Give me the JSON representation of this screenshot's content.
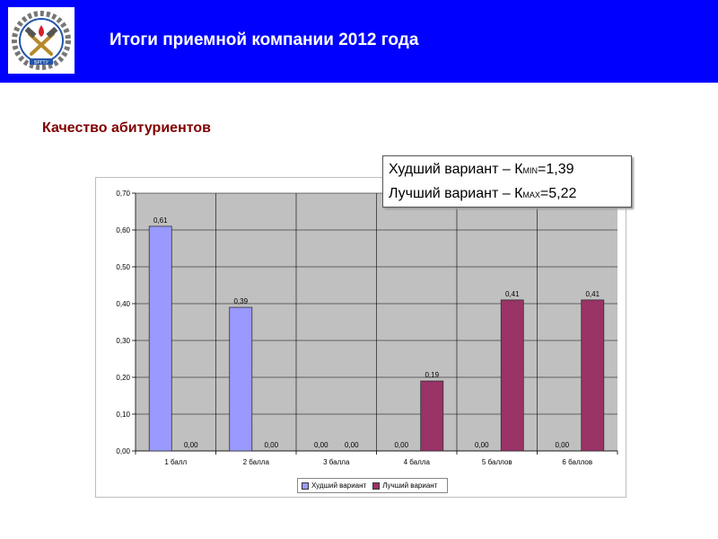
{
  "header": {
    "title": "Итоги приемной компании 2012 года",
    "logo_icon": "university-emblem-icon",
    "logo_text": "БРГТУ"
  },
  "subtitle": "Качество абитуриентов",
  "callout": {
    "worst": {
      "prefix": "Худший вариант – К",
      "sub": "MIN",
      "value": "=1,39"
    },
    "best": {
      "prefix": "Лучший вариант – К",
      "sub": "MAX",
      "value": "=5,22"
    }
  },
  "chart_data": {
    "type": "bar",
    "categories": [
      "1 балл",
      "2 балла",
      "3 балла",
      "4 балла",
      "5 баллов",
      "6 баллов"
    ],
    "series": [
      {
        "name": "Худший вариант",
        "values": [
          0.61,
          0.39,
          0.0,
          0.0,
          0.0,
          0.0
        ],
        "labels": [
          "0,61",
          "0,39",
          "0,00",
          "0,00",
          "0,00",
          "0,00"
        ],
        "color": "#9999ff"
      },
      {
        "name": "Лучший вариант",
        "values": [
          0.0,
          0.0,
          0.0,
          0.19,
          0.41,
          0.41
        ],
        "labels": [
          "0,00",
          "0,00",
          "0,00",
          "0,19",
          "0,41",
          "0,41"
        ],
        "color": "#993366"
      }
    ],
    "yticks": [
      "0,00",
      "0,10",
      "0,20",
      "0,30",
      "0,40",
      "0,50",
      "0,60",
      "0,70"
    ],
    "ylim": [
      0,
      0.7
    ],
    "plot_background": "#c0c0c0",
    "grid": true,
    "legend_position": "bottom"
  }
}
